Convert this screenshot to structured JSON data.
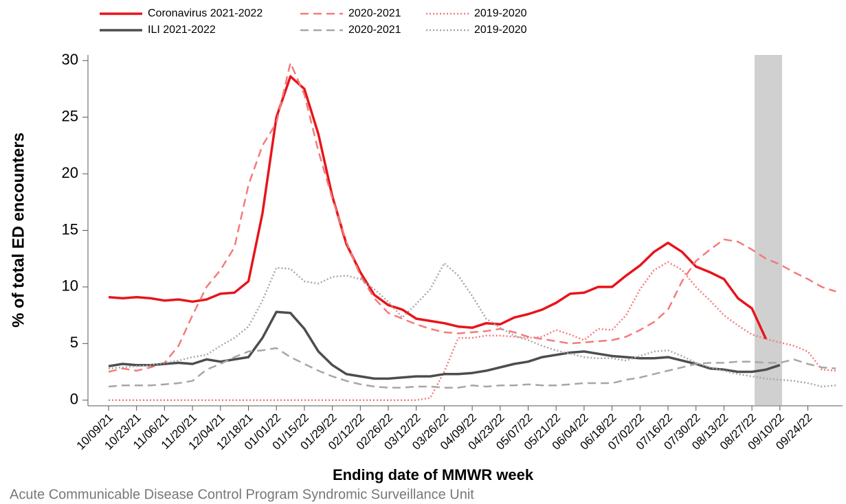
{
  "chart_data": {
    "type": "line",
    "y_label": "% of total ED encounters",
    "x_label": "Ending date of MMWR week",
    "caption": "Acute Communicable Disease Control Program Syndromic Surveillance Unit",
    "categories": [
      "10/09/21",
      null,
      "10/23/21",
      null,
      "11/06/21",
      null,
      "11/20/21",
      null,
      "12/04/21",
      null,
      "12/18/21",
      null,
      "01/01/22",
      null,
      "01/15/22",
      null,
      "01/29/22",
      null,
      "02/12/22",
      null,
      "02/26/22",
      null,
      "03/12/22",
      null,
      "03/26/22",
      null,
      "04/09/22",
      null,
      "04/23/22",
      null,
      "05/07/22",
      null,
      "05/21/22",
      null,
      "06/04/22",
      null,
      "06/18/22",
      null,
      "07/02/22",
      null,
      "07/16/22",
      null,
      "07/30/22",
      null,
      "08/13/22",
      null,
      "08/27/22",
      null,
      "09/10/22",
      null,
      "09/24/22",
      null,
      null
    ],
    "ylim": [
      -0.5,
      30.5
    ],
    "yticks": [
      0,
      5,
      10,
      15,
      20,
      25,
      30
    ],
    "series": [
      {
        "name": "Coronavirus 2021-2022",
        "color": "#e8141a",
        "dash": "solid",
        "values": [
          9.1,
          9.0,
          9.1,
          9.0,
          8.8,
          8.9,
          8.7,
          8.9,
          9.4,
          9.5,
          10.5,
          16.5,
          25.0,
          28.6,
          27.5,
          23.5,
          18.0,
          13.8,
          11.3,
          9.3,
          8.4,
          8.0,
          7.2,
          7.0,
          6.8,
          6.5,
          6.4,
          6.8,
          6.7,
          7.3,
          7.6,
          8.0,
          8.6,
          9.4,
          9.5,
          10.0,
          10.0,
          11.0,
          11.9,
          13.1,
          13.9,
          13.1,
          11.8,
          11.3,
          10.7,
          9.0,
          8.1,
          5.4,
          null,
          null,
          null,
          null,
          null
        ]
      },
      {
        "name": "2020-2021",
        "color": "#f47a7a",
        "dash": "dashed",
        "values": [
          2.5,
          2.8,
          2.6,
          2.9,
          3.3,
          4.8,
          7.5,
          10.0,
          11.5,
          13.5,
          19.0,
          22.5,
          24.5,
          29.8,
          27.0,
          22.0,
          17.8,
          14.0,
          11.0,
          9.0,
          7.7,
          7.2,
          6.7,
          6.3,
          6.0,
          5.9,
          6.0,
          6.1,
          6.3,
          6.0,
          5.6,
          5.4,
          5.2,
          5.0,
          5.1,
          5.2,
          5.3,
          5.6,
          6.2,
          6.9,
          8.0,
          10.5,
          12.3,
          13.3,
          14.2,
          14.0,
          13.3,
          12.5,
          12.0,
          11.3,
          10.7,
          10.0,
          9.6
        ]
      },
      {
        "name": "2019-2020",
        "color": "#f47a7a",
        "dash": "dotted",
        "values": [
          0,
          0,
          0,
          0,
          0,
          0,
          0,
          0,
          0,
          0,
          0,
          0,
          0,
          0,
          0,
          0,
          0,
          0,
          0,
          0,
          0,
          0,
          0,
          0.2,
          2.5,
          5.5,
          5.5,
          5.7,
          5.7,
          5.6,
          5.5,
          5.6,
          6.2,
          5.8,
          5.3,
          6.3,
          6.2,
          7.5,
          9.8,
          11.5,
          12.2,
          11.5,
          10.0,
          8.8,
          7.5,
          6.6,
          5.8,
          5.4,
          5.1,
          4.8,
          4.3,
          2.7,
          2.6
        ]
      },
      {
        "name": "ILI 2021-2022",
        "color": "#4d4d4d",
        "dash": "solid",
        "values": [
          3.0,
          3.2,
          3.1,
          3.1,
          3.2,
          3.3,
          3.2,
          3.6,
          3.4,
          3.6,
          3.8,
          5.5,
          7.8,
          7.7,
          6.3,
          4.3,
          3.1,
          2.3,
          2.1,
          1.9,
          1.9,
          2.0,
          2.1,
          2.1,
          2.3,
          2.3,
          2.4,
          2.6,
          2.9,
          3.2,
          3.4,
          3.8,
          4.0,
          4.2,
          4.3,
          4.1,
          3.9,
          3.8,
          3.7,
          3.7,
          3.8,
          3.5,
          3.2,
          2.8,
          2.7,
          2.5,
          2.5,
          2.7,
          3.1,
          null,
          null,
          null,
          null
        ]
      },
      {
        "name": "2020-2021",
        "color": "#a6a6a6",
        "dash": "dashed",
        "values": [
          1.2,
          1.3,
          1.3,
          1.3,
          1.4,
          1.5,
          1.7,
          2.7,
          3.2,
          3.8,
          4.3,
          4.4,
          4.6,
          3.8,
          3.2,
          2.6,
          2.1,
          1.7,
          1.4,
          1.2,
          1.1,
          1.1,
          1.2,
          1.2,
          1.1,
          1.1,
          1.3,
          1.2,
          1.3,
          1.3,
          1.4,
          1.3,
          1.3,
          1.4,
          1.5,
          1.5,
          1.5,
          1.8,
          2.0,
          2.3,
          2.6,
          2.9,
          3.2,
          3.3,
          3.3,
          3.4,
          3.4,
          3.3,
          3.3,
          3.6,
          3.2,
          2.9,
          2.8
        ]
      },
      {
        "name": "2019-2020",
        "color": "#a6a6a6",
        "dash": "dotted",
        "values": [
          2.8,
          2.9,
          3.0,
          3.1,
          3.3,
          3.5,
          3.8,
          4.0,
          4.8,
          5.5,
          6.5,
          8.8,
          11.7,
          11.6,
          10.5,
          10.3,
          10.9,
          11.0,
          10.7,
          9.8,
          8.7,
          7.3,
          8.5,
          9.8,
          12.1,
          11.0,
          9.2,
          7.2,
          6.4,
          5.7,
          5.3,
          4.8,
          4.4,
          4.1,
          3.8,
          3.7,
          3.7,
          3.5,
          3.9,
          4.3,
          4.4,
          3.9,
          3.3,
          2.9,
          2.6,
          2.3,
          2.1,
          1.9,
          1.8,
          1.7,
          1.5,
          1.2,
          1.3
        ]
      }
    ]
  }
}
